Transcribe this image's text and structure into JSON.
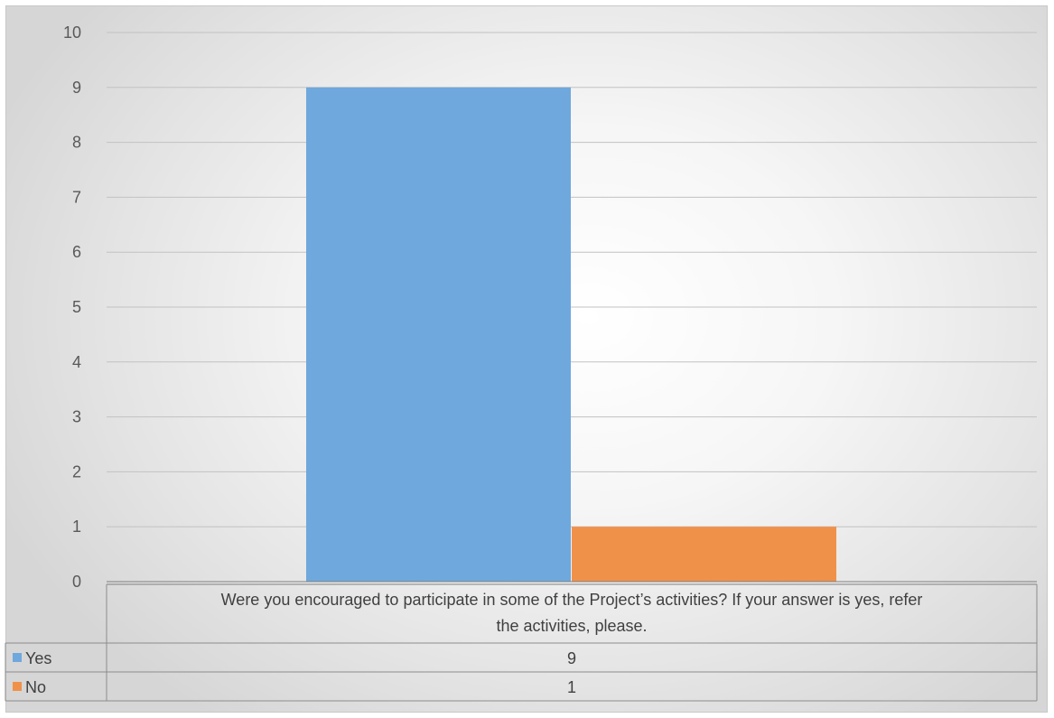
{
  "chart_data": {
    "type": "bar",
    "categories": [
      "Were you encouraged to participate in some of the Project’s activities? If your answer is yes, refer the activities, please."
    ],
    "category_lines": [
      "Were you encouraged to participate in some of the Project’s activities? If your answer is yes, refer",
      "the activities, please."
    ],
    "series": [
      {
        "name": "Yes",
        "values": [
          9
        ],
        "value_label": "9",
        "color": "#6fa8dc"
      },
      {
        "name": "No",
        "values": [
          1
        ],
        "value_label": "1",
        "color": "#f0914a"
      }
    ],
    "ylim": [
      0,
      10
    ],
    "yticks": [
      "0",
      "1",
      "2",
      "3",
      "4",
      "5",
      "6",
      "7",
      "8",
      "9",
      "10"
    ],
    "grid": true,
    "legend": "data-table-below",
    "title": "",
    "xlabel": "",
    "ylabel": ""
  }
}
